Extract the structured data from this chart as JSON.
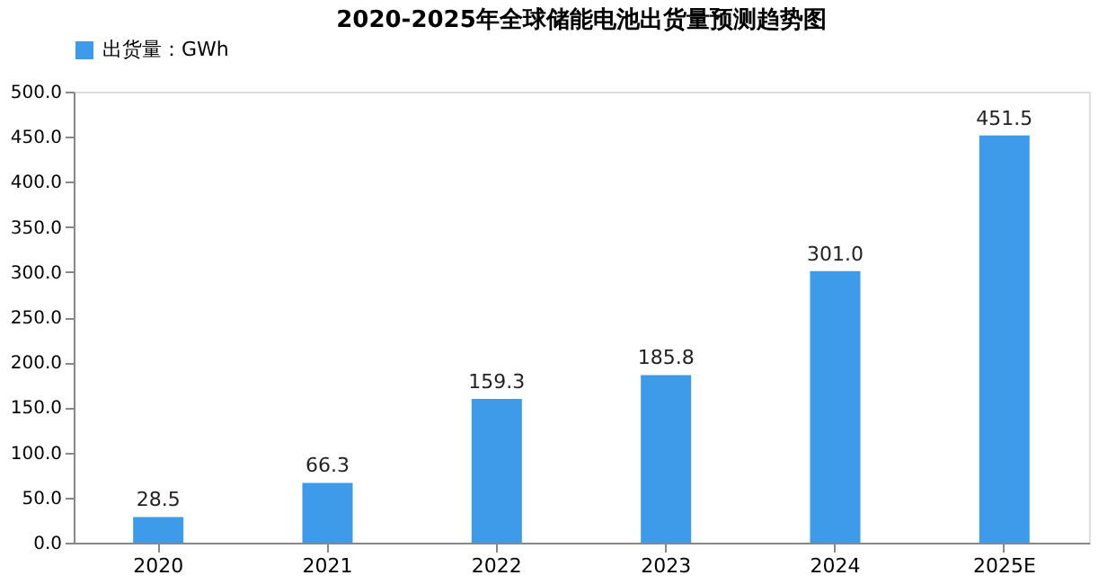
{
  "chart_data": {
    "type": "bar",
    "title": "2020-2025年全球储能电池出货量预测趋势图",
    "categories": [
      "2020",
      "2021",
      "2022",
      "2023",
      "2024",
      "2025E"
    ],
    "series": [
      {
        "name": "出货量：GWh",
        "color": "#3d9be9",
        "values": [
          28.5,
          66.3,
          159.3,
          185.8,
          301.0,
          451.5
        ],
        "value_labels": [
          "28.5",
          "66.3",
          "159.3",
          "185.8",
          "301.0",
          "451.5"
        ]
      }
    ],
    "ylim": [
      0,
      500
    ],
    "yticks": [
      {
        "value": 0,
        "label": "0.0"
      },
      {
        "value": 50,
        "label": "50.0"
      },
      {
        "value": 100,
        "label": "100.0"
      },
      {
        "value": 150,
        "label": "150.0"
      },
      {
        "value": 200,
        "label": "200.0"
      },
      {
        "value": 250,
        "label": "250.0"
      },
      {
        "value": 300,
        "label": "300.0"
      },
      {
        "value": 350,
        "label": "350.0"
      },
      {
        "value": 400,
        "label": "400.0"
      },
      {
        "value": 450,
        "label": "450.0"
      },
      {
        "value": 500,
        "label": "500.0"
      }
    ],
    "grid": false,
    "legend": "top"
  }
}
